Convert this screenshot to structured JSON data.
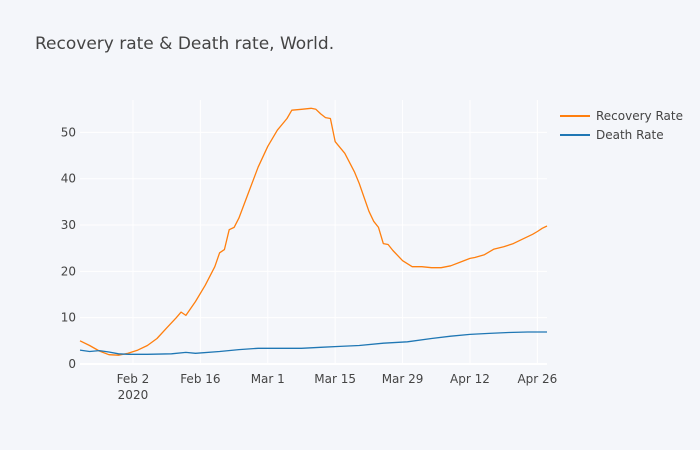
{
  "page": {
    "title": "Recovery rate & Death rate, World."
  },
  "chart_data": {
    "type": "line",
    "title": "Recovery rate & Death rate, World.",
    "x_ticks": [
      {
        "date": "2020-02-02",
        "label": "Feb 2",
        "sublabel": "2020"
      },
      {
        "date": "2020-02-16",
        "label": "Feb 16"
      },
      {
        "date": "2020-03-01",
        "label": "Mar 1"
      },
      {
        "date": "2020-03-15",
        "label": "Mar 15"
      },
      {
        "date": "2020-03-29",
        "label": "Mar 29"
      },
      {
        "date": "2020-04-12",
        "label": "Apr 12"
      },
      {
        "date": "2020-04-26",
        "label": "Apr 26"
      }
    ],
    "y_ticks": [
      0,
      10,
      20,
      30,
      40,
      50
    ],
    "xlim": [
      "2020-01-22",
      "2020-04-28"
    ],
    "ylim": [
      0,
      57
    ],
    "grid": true,
    "legend_position": "top-right",
    "series": [
      {
        "name": "Recovery Rate",
        "color": "#ff7f0e",
        "points": [
          [
            "2020-01-22",
            5.0
          ],
          [
            "2020-01-24",
            4.0
          ],
          [
            "2020-01-26",
            2.8
          ],
          [
            "2020-01-28",
            2.0
          ],
          [
            "2020-01-30",
            1.9
          ],
          [
            "2020-02-01",
            2.3
          ],
          [
            "2020-02-03",
            3.0
          ],
          [
            "2020-02-05",
            4.0
          ],
          [
            "2020-02-07",
            5.5
          ],
          [
            "2020-02-09",
            7.8
          ],
          [
            "2020-02-11",
            10.0
          ],
          [
            "2020-02-12",
            11.2
          ],
          [
            "2020-02-13",
            10.5
          ],
          [
            "2020-02-15",
            13.5
          ],
          [
            "2020-02-17",
            17.0
          ],
          [
            "2020-02-19",
            21.0
          ],
          [
            "2020-02-20",
            24.0
          ],
          [
            "2020-02-21",
            24.7
          ],
          [
            "2020-02-22",
            29.0
          ],
          [
            "2020-02-23",
            29.5
          ],
          [
            "2020-02-24",
            31.5
          ],
          [
            "2020-02-26",
            37.0
          ],
          [
            "2020-02-28",
            42.5
          ],
          [
            "2020-03-01",
            47.0
          ],
          [
            "2020-03-03",
            50.5
          ],
          [
            "2020-03-05",
            53.0
          ],
          [
            "2020-03-06",
            54.8
          ],
          [
            "2020-03-08",
            55.0
          ],
          [
            "2020-03-10",
            55.2
          ],
          [
            "2020-03-11",
            55.0
          ],
          [
            "2020-03-12",
            54.0
          ],
          [
            "2020-03-13",
            53.2
          ],
          [
            "2020-03-14",
            53.0
          ],
          [
            "2020-03-15",
            48.0
          ],
          [
            "2020-03-17",
            45.5
          ],
          [
            "2020-03-19",
            41.5
          ],
          [
            "2020-03-20",
            39.0
          ],
          [
            "2020-03-22",
            33.0
          ],
          [
            "2020-03-23",
            30.8
          ],
          [
            "2020-03-24",
            29.5
          ],
          [
            "2020-03-25",
            26.0
          ],
          [
            "2020-03-26",
            25.8
          ],
          [
            "2020-03-27",
            24.5
          ],
          [
            "2020-03-29",
            22.3
          ],
          [
            "2020-03-31",
            21.0
          ],
          [
            "2020-04-02",
            21.0
          ],
          [
            "2020-04-04",
            20.8
          ],
          [
            "2020-04-06",
            20.8
          ],
          [
            "2020-04-08",
            21.2
          ],
          [
            "2020-04-10",
            22.0
          ],
          [
            "2020-04-12",
            22.8
          ],
          [
            "2020-04-13",
            23.0
          ],
          [
            "2020-04-15",
            23.6
          ],
          [
            "2020-04-17",
            24.8
          ],
          [
            "2020-04-19",
            25.3
          ],
          [
            "2020-04-21",
            26.0
          ],
          [
            "2020-04-23",
            27.0
          ],
          [
            "2020-04-25",
            28.0
          ],
          [
            "2020-04-26",
            28.6
          ],
          [
            "2020-04-27",
            29.3
          ],
          [
            "2020-04-28",
            29.8
          ]
        ]
      },
      {
        "name": "Death Rate",
        "color": "#1f77b4",
        "points": [
          [
            "2020-01-22",
            3.0
          ],
          [
            "2020-01-24",
            2.7
          ],
          [
            "2020-01-26",
            2.9
          ],
          [
            "2020-01-28",
            2.6
          ],
          [
            "2020-01-30",
            2.2
          ],
          [
            "2020-02-01",
            2.1
          ],
          [
            "2020-02-05",
            2.1
          ],
          [
            "2020-02-10",
            2.2
          ],
          [
            "2020-02-13",
            2.5
          ],
          [
            "2020-02-15",
            2.3
          ],
          [
            "2020-02-20",
            2.7
          ],
          [
            "2020-02-24",
            3.1
          ],
          [
            "2020-02-28",
            3.4
          ],
          [
            "2020-03-04",
            3.4
          ],
          [
            "2020-03-08",
            3.4
          ],
          [
            "2020-03-12",
            3.6
          ],
          [
            "2020-03-16",
            3.8
          ],
          [
            "2020-03-20",
            4.0
          ],
          [
            "2020-03-25",
            4.5
          ],
          [
            "2020-03-30",
            4.8
          ],
          [
            "2020-04-04",
            5.5
          ],
          [
            "2020-04-08",
            6.0
          ],
          [
            "2020-04-12",
            6.4
          ],
          [
            "2020-04-16",
            6.6
          ],
          [
            "2020-04-20",
            6.8
          ],
          [
            "2020-04-24",
            6.9
          ],
          [
            "2020-04-28",
            6.9
          ]
        ]
      }
    ]
  }
}
